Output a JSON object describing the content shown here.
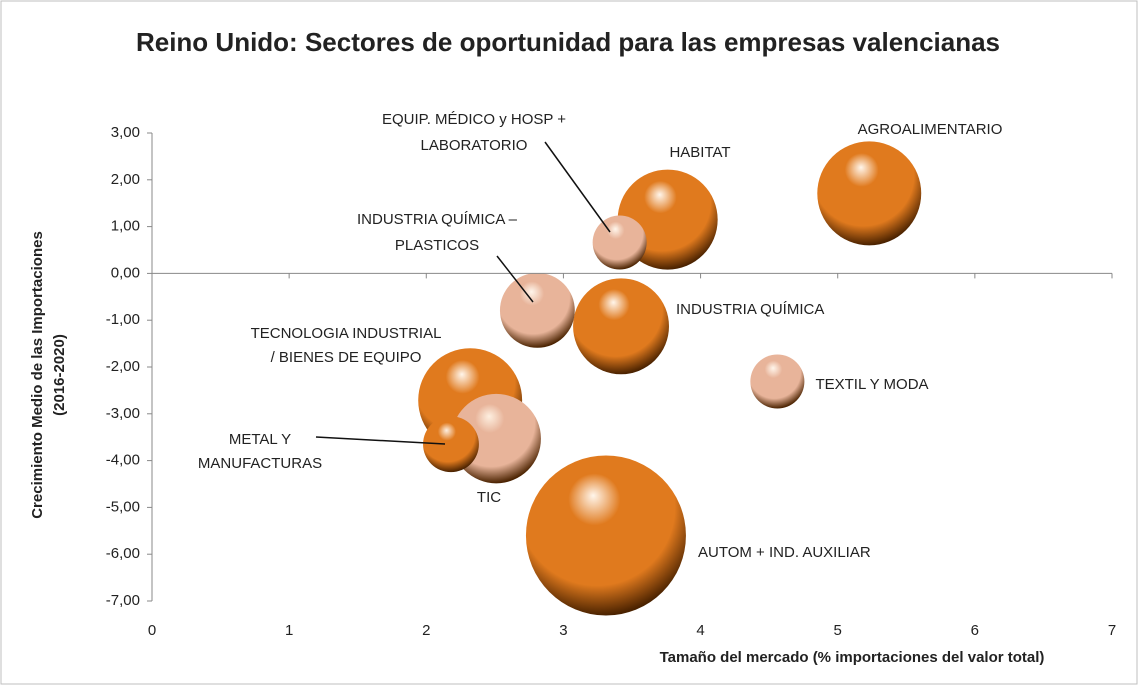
{
  "chart_data": {
    "type": "bubble",
    "title": "Reino Unido: Sectores de oportunidad para las empresas valencianas",
    "x_label": "Tamaño del mercado (% importaciones del valor total)",
    "y_label": [
      "Crecimiento Medio de las Importaciones",
      "(2016-2020)"
    ],
    "xlim": [
      0,
      7
    ],
    "xticks": [
      0,
      1,
      2,
      3,
      4,
      5,
      6,
      7
    ],
    "ylim": [
      -7,
      3
    ],
    "yticks": [
      {
        "value": 3,
        "label": "3,00"
      },
      {
        "value": 2,
        "label": "2,00"
      },
      {
        "value": 1,
        "label": "1,00"
      },
      {
        "value": 0,
        "label": "0,00"
      },
      {
        "value": -1,
        "label": "-1,00"
      },
      {
        "value": -2,
        "label": "-2,00"
      },
      {
        "value": -3,
        "label": "-3,00"
      },
      {
        "value": -4,
        "label": "-4,00"
      },
      {
        "value": -5,
        "label": "-5,00"
      },
      {
        "value": -6,
        "label": "-6,00"
      },
      {
        "value": -7,
        "label": "-7,00"
      }
    ],
    "grid": false,
    "points": [
      {
        "label": [
          "AGROALIMENTARIO"
        ],
        "x": 5.23,
        "y": 1.71,
        "size": 27,
        "color": "#e07a1e"
      },
      {
        "label": [
          "HABITAT"
        ],
        "x": 3.76,
        "y": 1.15,
        "size": 25,
        "color": "#e07a1e"
      },
      {
        "label": [
          "EQUIP. MÉDICO y HOSP +",
          "LABORATORIO"
        ],
        "x": 3.41,
        "y": 0.66,
        "size": 7.3,
        "color": "#e8b49a"
      },
      {
        "label": [
          "INDUSTRIA QUÍMICA –",
          "PLASTICOS"
        ],
        "x": 2.81,
        "y": -0.79,
        "size": 14,
        "color": "#e8b49a"
      },
      {
        "label": [
          "INDUSTRIA QUÍMICA"
        ],
        "x": 3.42,
        "y": -1.13,
        "size": 23,
        "color": "#e07a1e"
      },
      {
        "label": [
          "TEXTIL Y MODA"
        ],
        "x": 4.56,
        "y": -2.31,
        "size": 7.3,
        "color": "#e8b49a"
      },
      {
        "label": [
          "TECNOLOGIA INDUSTRIAL",
          "/ BIENES DE EQUIPO"
        ],
        "x": 2.32,
        "y": -2.71,
        "size": 27,
        "color": "#e07a1e"
      },
      {
        "label": [
          "METAL Y",
          "MANUFACTURAS"
        ],
        "x": 2.18,
        "y": -3.65,
        "size": 7.8,
        "color": "#e07a1e"
      },
      {
        "label": [
          "TIC"
        ],
        "x": 2.51,
        "y": -3.53,
        "size": 20,
        "color": "#e8b49a"
      },
      {
        "label": [
          "AUTOM + IND. AUXILIAR"
        ],
        "x": 3.31,
        "y": -5.6,
        "size": 64,
        "color": "#e07a1e"
      }
    ]
  }
}
